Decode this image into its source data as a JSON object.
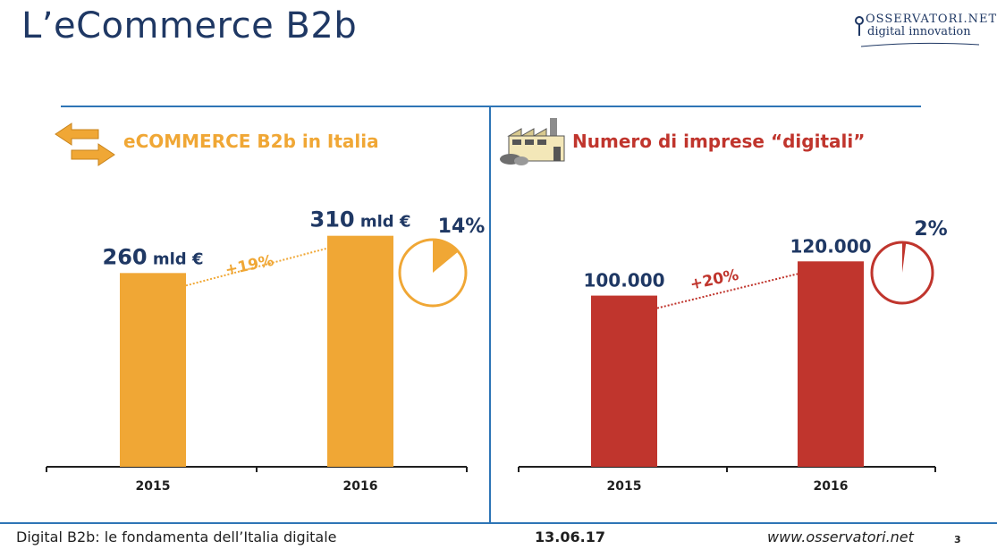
{
  "slide": {
    "title": "L’eCommerce B2b",
    "logo_line1": "OSSERVATORI.NET",
    "logo_line2": "digital innovation"
  },
  "colors": {
    "orange": "#f0a735",
    "red": "#c0352d",
    "navy": "#1f3864",
    "rule": "#2e75b6"
  },
  "left_panel": {
    "heading": "eCOMMERCE B2b in Italia",
    "icon": "exchange-arrows-icon"
  },
  "right_panel": {
    "heading": "Numero di imprese “digitali”",
    "icon": "factory-icon"
  },
  "chart_data": [
    {
      "type": "bar",
      "categories": [
        "2015",
        "2016"
      ],
      "values": [
        260,
        310
      ],
      "data_labels": [
        {
          "number": "260",
          "unit": "mld €"
        },
        {
          "number": "310",
          "unit": "mld €"
        }
      ],
      "growth_label": "+19%",
      "share": {
        "value": 0.14,
        "label": "14%"
      },
      "ylim": [
        0,
        330
      ],
      "color": "#f0a735"
    },
    {
      "type": "bar",
      "categories": [
        "2015",
        "2016"
      ],
      "values": [
        100000,
        120000
      ],
      "data_labels": [
        {
          "number": "100.000",
          "unit": ""
        },
        {
          "number": "120.000",
          "unit": ""
        }
      ],
      "growth_label": "+20%",
      "share": {
        "value": 0.02,
        "label": "2%"
      },
      "ylim": [
        0,
        140000
      ],
      "color": "#c0352d"
    }
  ],
  "footer": {
    "text": "Digital B2b: le fondamenta dell’Italia digitale",
    "date": "13.06.17",
    "url": "www.osservatori.net",
    "page": "3"
  }
}
